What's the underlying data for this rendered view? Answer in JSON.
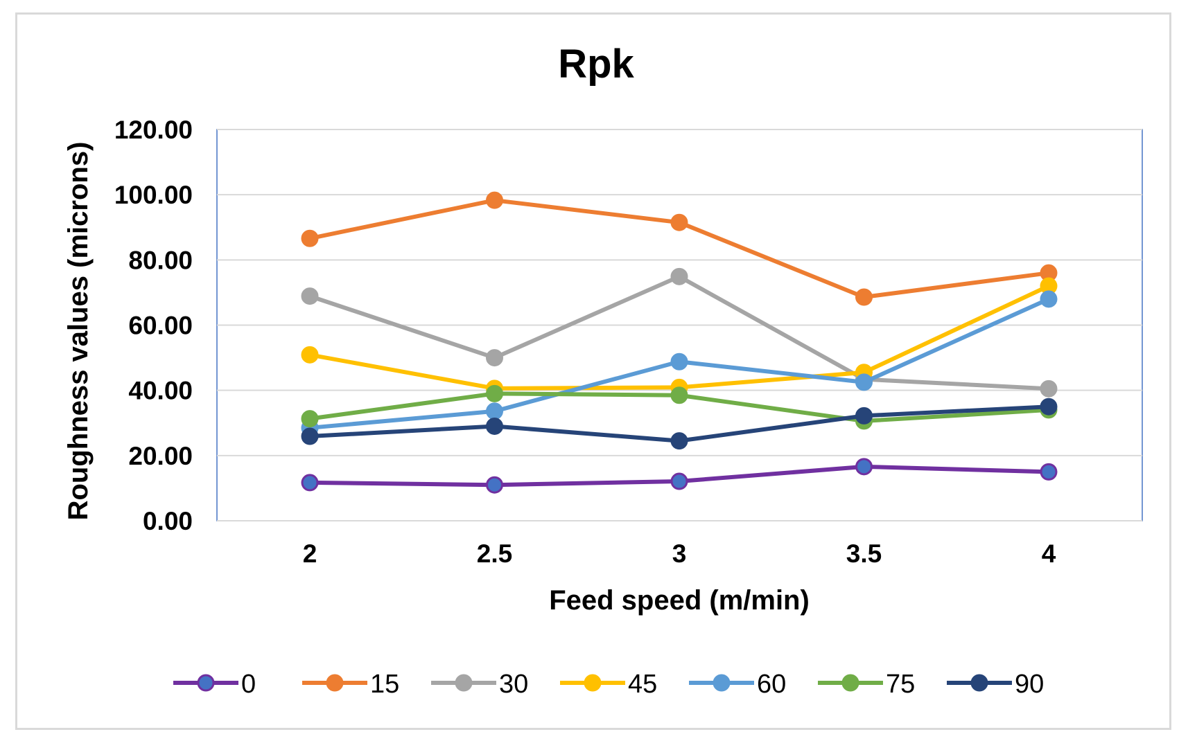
{
  "chart_data": {
    "type": "line",
    "title": "Rpk",
    "xlabel": "Feed speed (m/min)",
    "ylabel": "Roughness values (microns)",
    "categories": [
      "2",
      "2.5",
      "3",
      "3.5",
      "4"
    ],
    "ylim": [
      0,
      120
    ],
    "yticks": [
      "0.00",
      "20.00",
      "40.00",
      "60.00",
      "80.00",
      "100.00",
      "120.00"
    ],
    "grid": true,
    "legend_position": "bottom",
    "series": [
      {
        "name": "0",
        "color": "#7030A0",
        "marker": "#4472C4",
        "values": [
          11.7,
          11.0,
          12.1,
          16.6,
          15.0
        ]
      },
      {
        "name": "15",
        "color": "#ED7D31",
        "marker": "#ED7D31",
        "values": [
          86.6,
          98.3,
          91.5,
          68.6,
          76.0
        ]
      },
      {
        "name": "30",
        "color": "#A5A5A5",
        "marker": "#A5A5A5",
        "values": [
          68.9,
          50.0,
          74.9,
          43.4,
          40.5
        ]
      },
      {
        "name": "45",
        "color": "#FFC000",
        "marker": "#FFC000",
        "values": [
          50.9,
          40.6,
          40.9,
          45.5,
          72.0
        ]
      },
      {
        "name": "60",
        "color": "#5B9BD5",
        "marker": "#5B9BD5",
        "values": [
          28.5,
          33.6,
          48.8,
          42.5,
          68.0
        ]
      },
      {
        "name": "75",
        "color": "#70AD47",
        "marker": "#70AD47",
        "values": [
          31.3,
          39.0,
          38.5,
          30.6,
          34.0
        ]
      },
      {
        "name": "90",
        "color": "#264478",
        "marker": "#264478",
        "values": [
          25.9,
          29.0,
          24.5,
          32.2,
          35.0
        ]
      }
    ]
  }
}
